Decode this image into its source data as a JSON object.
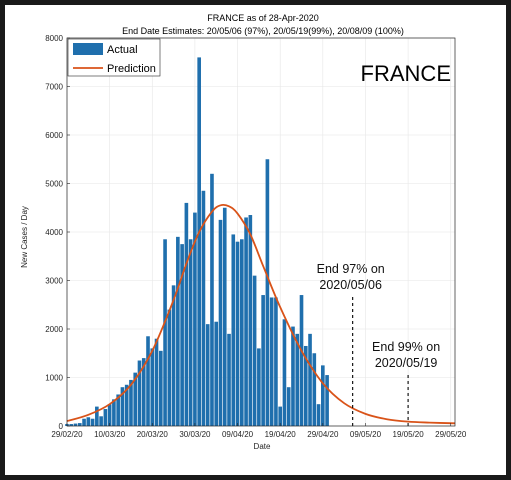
{
  "chart_data": {
    "type": "bar",
    "title": "FRANCE as of 28-Apr-2020",
    "subtitle": "End Date Estimates: 20/05/06 (97%), 20/05/19(99%), 20/08/09 (100%)",
    "xlabel": "Date",
    "ylabel": "New Cases / Day",
    "ylim": [
      0,
      8000
    ],
    "yticks": [
      0,
      1000,
      2000,
      3000,
      4000,
      5000,
      6000,
      7000,
      8000
    ],
    "xlim_day": [
      0,
      91
    ],
    "xticks": [
      "29/02/20",
      "10/03/20",
      "20/03/20",
      "30/03/20",
      "09/04/20",
      "19/04/20",
      "29/04/20",
      "09/05/20",
      "19/05/20",
      "29/05/20"
    ],
    "grid": true,
    "country_label": "FRANCE",
    "legend": {
      "position": "top-left",
      "items": [
        {
          "label": "Actual",
          "color": "#1f6fad",
          "kind": "bar"
        },
        {
          "label": "Prediction",
          "color": "#d95319",
          "kind": "line"
        }
      ]
    },
    "series": [
      {
        "name": "Actual",
        "color": "#1f6fad",
        "x_start": "29/02/20",
        "values": [
          40,
          40,
          50,
          60,
          150,
          180,
          150,
          400,
          200,
          350,
          450,
          550,
          650,
          800,
          850,
          950,
          1100,
          1350,
          1400,
          1850,
          1600,
          1800,
          1550,
          3850,
          2400,
          2900,
          3900,
          3750,
          4600,
          3850,
          4400,
          7600,
          4850,
          2100,
          5200,
          2150,
          4250,
          4500,
          1900,
          3950,
          3800,
          3850,
          4300,
          4350,
          3100,
          1600,
          2700,
          5500,
          2650,
          2650,
          400,
          2200,
          800,
          2050,
          1900,
          2700,
          1650,
          1900,
          1500,
          450,
          1250,
          1050
        ]
      },
      {
        "name": "Prediction",
        "color": "#d95319",
        "kind": "line",
        "peak_value": 4550,
        "peak_date": "04/04/20",
        "points": [
          [
            0,
            100
          ],
          [
            5,
            230
          ],
          [
            10,
            450
          ],
          [
            15,
            850
          ],
          [
            20,
            1550
          ],
          [
            25,
            2600
          ],
          [
            28,
            3350
          ],
          [
            31,
            4000
          ],
          [
            34,
            4420
          ],
          [
            36,
            4550
          ],
          [
            38,
            4530
          ],
          [
            40,
            4380
          ],
          [
            43,
            3950
          ],
          [
            46,
            3300
          ],
          [
            50,
            2450
          ],
          [
            55,
            1550
          ],
          [
            60,
            880
          ],
          [
            65,
            470
          ],
          [
            70,
            250
          ],
          [
            75,
            140
          ],
          [
            80,
            90
          ],
          [
            85,
            70
          ],
          [
            91,
            55
          ]
        ]
      }
    ],
    "annotations": [
      {
        "label_line1": "End 97% on",
        "label_line2": "2020/05/06",
        "x_day": 67
      },
      {
        "label_line1": "End 99% on",
        "label_line2": "2020/05/19",
        "x_day": 80
      }
    ]
  }
}
